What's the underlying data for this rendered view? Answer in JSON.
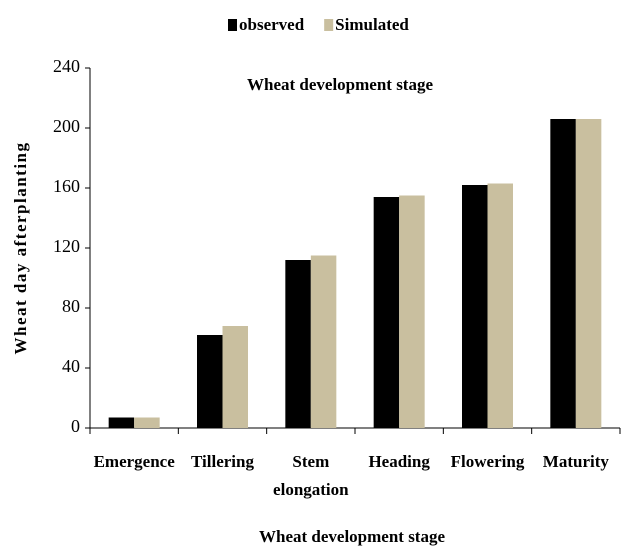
{
  "chart_data": {
    "type": "bar",
    "title": "Wheat development stage",
    "x_label": "Wheat development stage",
    "y_label": "Wheat day afterplanting",
    "categories": [
      "Emergence",
      "Tillering",
      "Stem elongation",
      "Heading",
      "Flowering",
      "Maturity"
    ],
    "series": [
      {
        "name": "observed",
        "color": "#000000",
        "values": [
          7,
          62,
          112,
          154,
          162,
          206
        ]
      },
      {
        "name": "Simulated",
        "color": "#c9bf9f",
        "values": [
          7,
          68,
          115,
          155,
          163,
          206
        ]
      }
    ],
    "ylim": [
      0,
      240
    ],
    "yticks": [
      0,
      40,
      80,
      120,
      160,
      200,
      240
    ],
    "grid": false,
    "legend": "top"
  }
}
